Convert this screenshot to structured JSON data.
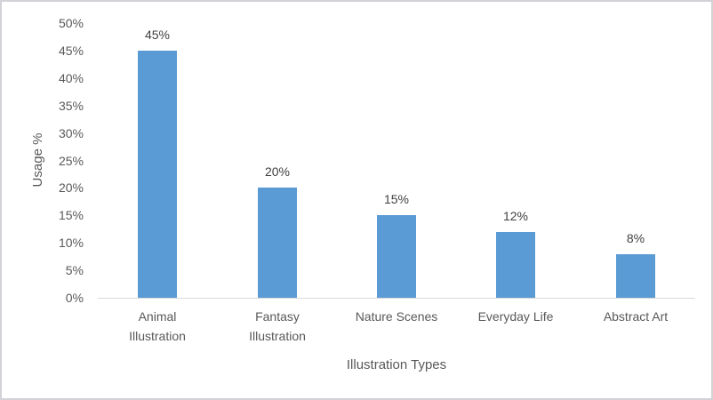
{
  "chart_data": {
    "type": "bar",
    "title": "",
    "categories": [
      "Animal Illustration",
      "Fantasy Illustration",
      "Nature Scenes",
      "Everyday Life",
      "Abstract Art"
    ],
    "values": [
      45,
      20,
      15,
      12,
      8
    ],
    "data_labels": [
      "45%",
      "20%",
      "15%",
      "12%",
      "8%"
    ],
    "xlabel": "Illustration Types",
    "ylabel": "Usage %",
    "ylim": [
      0,
      50
    ],
    "ytick_step": 5,
    "ytick_labels": [
      "0%",
      "5%",
      "10%",
      "15%",
      "20%",
      "25%",
      "30%",
      "35%",
      "40%",
      "45%",
      "50%"
    ],
    "grid": false,
    "legend": false,
    "bar_color": "#5B9BD5",
    "axis_line_color": "#D9D9D9",
    "value_label_color": "#404040",
    "axis_text_color": "#595959",
    "frame_border_color": "#d3d2d7"
  }
}
